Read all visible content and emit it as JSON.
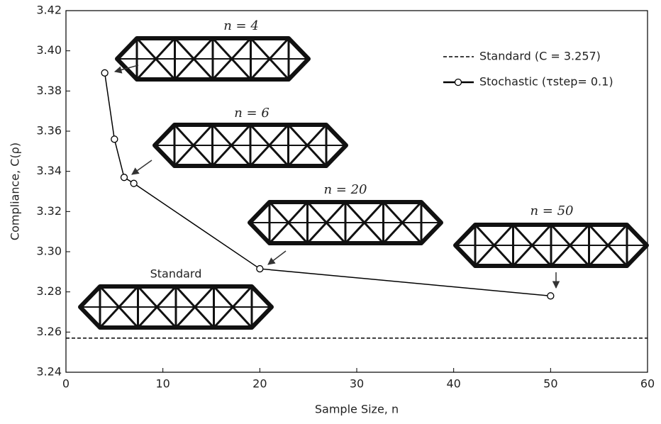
{
  "chart_data": {
    "type": "line",
    "xlabel": "Sample Size, n",
    "ylabel": "Compliance, C(ρ)",
    "xlim": [
      0,
      60
    ],
    "xticks": [
      0,
      10,
      20,
      30,
      40,
      50,
      60
    ],
    "ylim": [
      3.24,
      3.42
    ],
    "yticks": [
      {
        "value": 3.24,
        "label": "3.24"
      },
      {
        "value": 3.26,
        "label": "3.26"
      },
      {
        "value": 3.28,
        "label": "3.28"
      },
      {
        "value": 3.3,
        "label": "3.30"
      },
      {
        "value": 3.32,
        "label": "3.32"
      },
      {
        "value": 3.34,
        "label": "3.34"
      },
      {
        "value": 3.36,
        "label": "3.36"
      },
      {
        "value": 3.38,
        "label": "3.38"
      },
      {
        "value": 3.4,
        "label": "3.40"
      },
      {
        "value": 3.42,
        "label": "3.42"
      }
    ],
    "reference_line": {
      "name": "Standard (C = 3.257)",
      "value": 3.257,
      "color": "#000000"
    },
    "series": [
      {
        "name": "Stochastic (τstep= 0.1)",
        "color": "#000000",
        "x": [
          4,
          5,
          6,
          7,
          20,
          50
        ],
        "values": [
          3.389,
          3.356,
          3.337,
          3.334,
          3.2915,
          3.278
        ]
      }
    ],
    "annotations": [
      "n = 4",
      "n = 6",
      "n = 20",
      "n = 50",
      "Standard"
    ],
    "legend": "upper right"
  }
}
